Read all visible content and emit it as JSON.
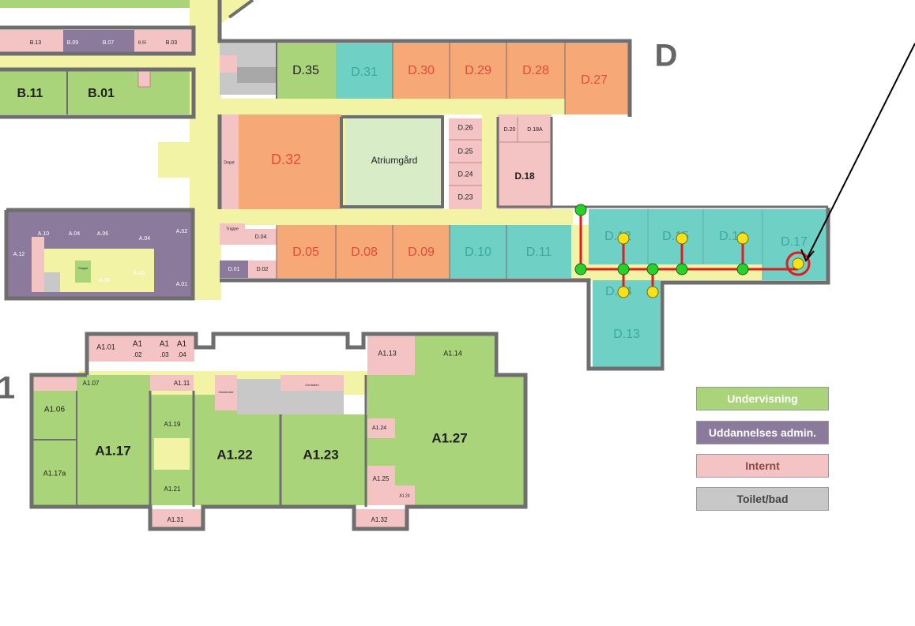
{
  "wing_letter": "D",
  "wing_number_fragment": "1",
  "colors": {
    "undervisning": "#a9d47a",
    "admin": "#8b7a9b",
    "internt": "#f4c3c3",
    "toilet": "#c8c8c8",
    "corridor": "#f3f3a6",
    "orange_room": "#f7a877",
    "teal_room": "#6fd0c6",
    "wall": "#6e6e6e",
    "route": "#e21b1b",
    "node_green": "#27d12a",
    "node_yellow": "#f6e21a",
    "target_ring": "#e21b1b"
  },
  "rooms": {
    "b13": "B.13",
    "b09": "B.09",
    "b07": "B.07",
    "b05": "B.05",
    "b03": "B.03",
    "b11": "B.11",
    "b01": "B.01",
    "d35": "D.35",
    "d31": "D.31",
    "d30": "D.30",
    "d29": "D.29",
    "d28": "D.28",
    "d27": "D.27",
    "d32": "D.32",
    "atrium": "Atriumgård",
    "d26": "D.26",
    "d25": "D.25",
    "d24": "D.24",
    "d23": "D.23",
    "d20": "D.20",
    "d18a": "D.18A",
    "d18": "D.18",
    "trappe1": "Trappe",
    "d04": "D.04",
    "d01": "D.01",
    "d02": "D.02",
    "d05": "D.05",
    "d08": "D.08",
    "d09": "D.09",
    "d10": "D.10",
    "d11": "D.11",
    "d12": "D.12",
    "d15": "D.15",
    "d16": "D.16",
    "d17": "D.17",
    "d14": "D.14",
    "d13": "D.13",
    "depot": "Depot",
    "a10": "A.10",
    "a04a": "A.04",
    "a06": "A.06",
    "a04b": "A.04",
    "a02": "A.02",
    "a12": "A.12",
    "a05": "A.05",
    "a03": "A.03",
    "a01": "A.01",
    "trappe2": "Trappe",
    "a101": "A1.01",
    "a102_l1": "A1",
    "a102_l2": ".02",
    "a103_l1": "A1",
    "a103_l2": ".03",
    "a104_l1": "A1",
    "a104_l2": ".04",
    "a113": "A1.13",
    "a114": "A1.14",
    "a107": "A1.07",
    "a111": "A1.11",
    "a106": "A1.06",
    "a117": "A1.17",
    "a117a": "A1.17a",
    "a119": "A1.19",
    "a121": "A1.21",
    "a122": "A1.22",
    "a123": "A1.23",
    "a124a": "A1.24",
    "a125": "A1.25",
    "a124b": "A1.24",
    "a127": "A1.27",
    "a131": "A1.31",
    "a132": "A1.32",
    "garderobe": "Garderobe",
    "centralen": "Centralen"
  },
  "legend": [
    {
      "label": "Undervisning",
      "color": "#a9d47a",
      "text_color": "#ffffff"
    },
    {
      "label": "Uddannelses admin.",
      "color": "#8b7a9b",
      "text_color": "#ffffff"
    },
    {
      "label": "Internt",
      "color": "#f4c3c3",
      "text_color": "#8a4a4a"
    },
    {
      "label": "Toilet/bad",
      "color": "#c8c8c8",
      "text_color": "#444444"
    }
  ]
}
